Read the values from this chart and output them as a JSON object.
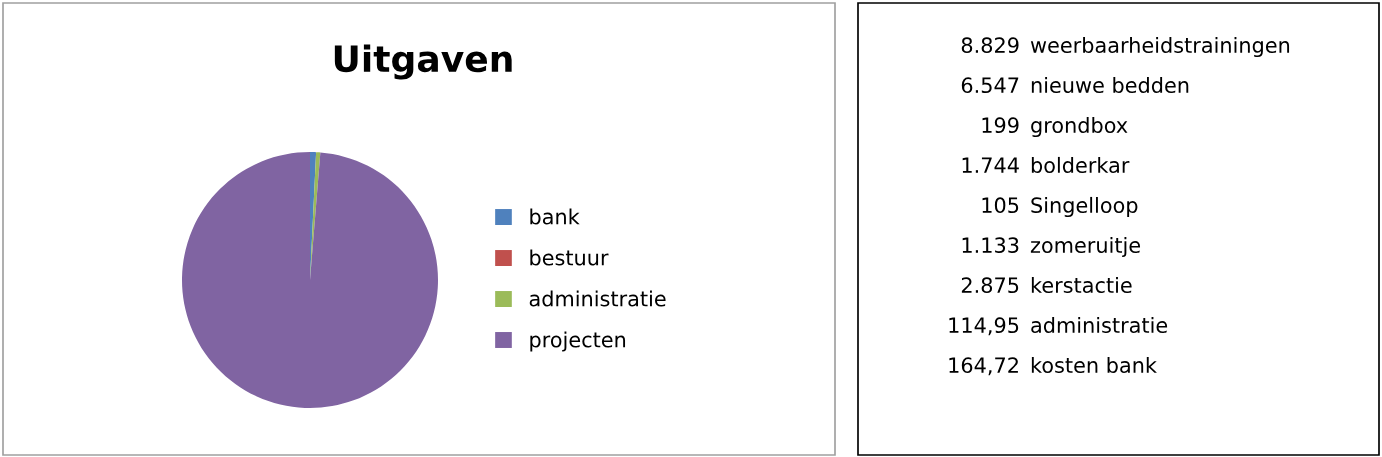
{
  "chart_data": [
    {
      "type": "pie",
      "title": "Uitgaven",
      "categories": [
        "bank",
        "bestuur",
        "administratie",
        "projecten"
      ],
      "values": [
        0.76,
        0,
        0.53,
        98.71
      ],
      "colors": [
        "#4f81bd",
        "#c0504d",
        "#9bbb59",
        "#8064a2"
      ],
      "legend": "right"
    },
    {
      "type": "other",
      "annotations": [
        "8.829",
        "weerbaarheidstrainingen",
        "6.547",
        "nieuwe bedden",
        "199",
        "grondbox",
        "1.744",
        "bolderkar",
        "105",
        "Singelloop",
        "1.133",
        "zomeruitje",
        "2.875",
        "kerstactie",
        "114,95",
        "administratie",
        "164,72",
        "kosten bank"
      ]
    }
  ]
}
